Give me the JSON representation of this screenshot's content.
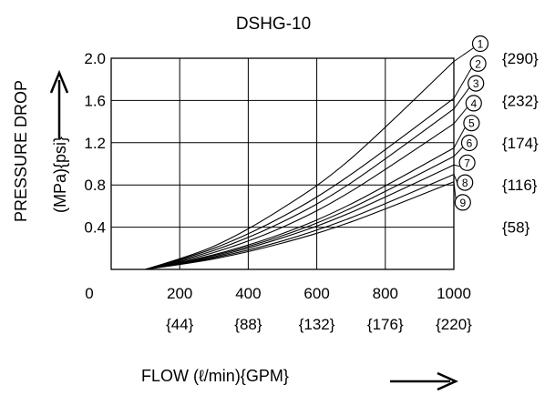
{
  "chart_data": {
    "type": "line",
    "title": "DSHG-10",
    "xlabel": "FLOW (ℓ/min){GPM}",
    "ylabel_line1": "PRESSURE DROP",
    "ylabel_line2": "(MPa){psi}",
    "xlim": [
      0,
      1000
    ],
    "ylim": [
      0,
      2.0
    ],
    "x_ticks": [
      {
        "value": 0,
        "label": "0",
        "sub": ""
      },
      {
        "value": 200,
        "label": "200",
        "sub": "{44}"
      },
      {
        "value": 400,
        "label": "400",
        "sub": "{88}"
      },
      {
        "value": 600,
        "label": "600",
        "sub": "{132}"
      },
      {
        "value": 800,
        "label": "800",
        "sub": "{176}"
      },
      {
        "value": 1000,
        "label": "1000",
        "sub": "{220}"
      }
    ],
    "y_ticks": [
      {
        "value": 0.4,
        "label": "0.4"
      },
      {
        "value": 0.8,
        "label": "0.8"
      },
      {
        "value": 1.2,
        "label": "1.2"
      },
      {
        "value": 1.6,
        "label": "1.6"
      },
      {
        "value": 2.0,
        "label": "2.0"
      }
    ],
    "right_axis_labels": [
      {
        "value": 0.4,
        "label": "{58}"
      },
      {
        "value": 0.8,
        "label": "{116}"
      },
      {
        "value": 1.2,
        "label": "{174}"
      },
      {
        "value": 1.6,
        "label": "{232}"
      },
      {
        "value": 2.0,
        "label": "{290}"
      }
    ],
    "grid": true,
    "series": [
      {
        "name": "①",
        "x": [
          100,
          300,
          500,
          700,
          1000
        ],
        "y": [
          0,
          0.22,
          0.58,
          1.05,
          1.97
        ]
      },
      {
        "name": "②",
        "x": [
          100,
          300,
          500,
          700,
          1000
        ],
        "y": [
          0,
          0.2,
          0.5,
          0.9,
          1.62
        ]
      },
      {
        "name": "③",
        "x": [
          100,
          300,
          500,
          700,
          1000
        ],
        "y": [
          0,
          0.18,
          0.45,
          0.82,
          1.52
        ]
      },
      {
        "name": "④",
        "x": [
          100,
          300,
          500,
          700,
          1000
        ],
        "y": [
          0,
          0.16,
          0.4,
          0.74,
          1.38
        ]
      },
      {
        "name": "⑤",
        "x": [
          100,
          300,
          500,
          700,
          1000
        ],
        "y": [
          0,
          0.14,
          0.34,
          0.62,
          1.15
        ]
      },
      {
        "name": "⑥",
        "x": [
          100,
          300,
          500,
          700,
          1000
        ],
        "y": [
          0,
          0.13,
          0.32,
          0.58,
          1.07
        ]
      },
      {
        "name": "⑦",
        "x": [
          100,
          300,
          500,
          700,
          1000
        ],
        "y": [
          0,
          0.12,
          0.3,
          0.54,
          0.99
        ]
      },
      {
        "name": "⑧",
        "x": [
          100,
          300,
          500,
          700,
          1000
        ],
        "y": [
          0,
          0.11,
          0.27,
          0.49,
          0.9
        ]
      },
      {
        "name": "⑨",
        "x": [
          100,
          300,
          500,
          700,
          1000
        ],
        "y": [
          0,
          0.1,
          0.25,
          0.45,
          0.83
        ]
      }
    ]
  }
}
